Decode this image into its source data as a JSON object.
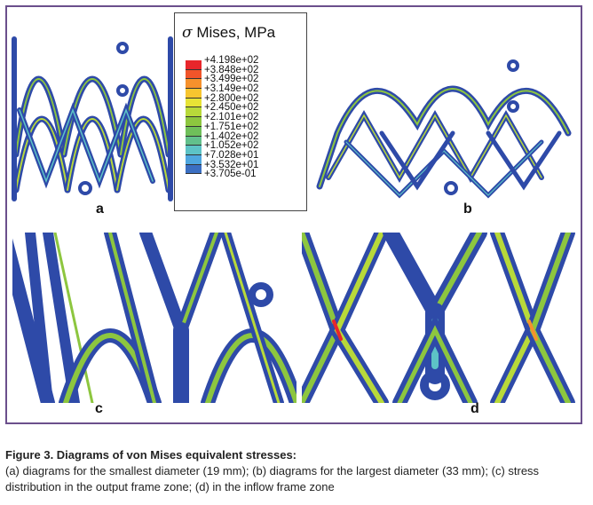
{
  "figure": {
    "legend": {
      "symbol": "σ",
      "title": "Mises, MPa",
      "entries": [
        {
          "value": "+4.198e+02",
          "color": "#e8262b"
        },
        {
          "value": "+3.848e+02",
          "color": "#f0542a"
        },
        {
          "value": "+3.499e+02",
          "color": "#f6912c"
        },
        {
          "value": "+3.149e+02",
          "color": "#f7c52f"
        },
        {
          "value": "+2.800e+02",
          "color": "#e7e336"
        },
        {
          "value": "+2.450e+02",
          "color": "#b8d93a"
        },
        {
          "value": "+2.101e+02",
          "color": "#8dc63f"
        },
        {
          "value": "+1.751e+02",
          "color": "#6fbf5a"
        },
        {
          "value": "+1.402e+02",
          "color": "#62c08c"
        },
        {
          "value": "+1.052e+02",
          "color": "#5dc3c6"
        },
        {
          "value": "+7.028e+01",
          "color": "#4fa7df"
        },
        {
          "value": "+3.532e+01",
          "color": "#3b6fc2"
        },
        {
          "value": "+3.705e-01",
          "color": "#2e4aa8"
        }
      ]
    },
    "panels": {
      "a": "a",
      "b": "b",
      "c": "c",
      "d": "d"
    }
  },
  "caption": {
    "title": "Figure 3. Diagrams of von Mises equivalent stresses:",
    "body": "(a) diagrams for the smallest diameter (19 mm); (b) diagrams for the largest diameter (33 mm); (c) stress distribution in the output frame zone; (d) in the inflow frame zone"
  }
}
